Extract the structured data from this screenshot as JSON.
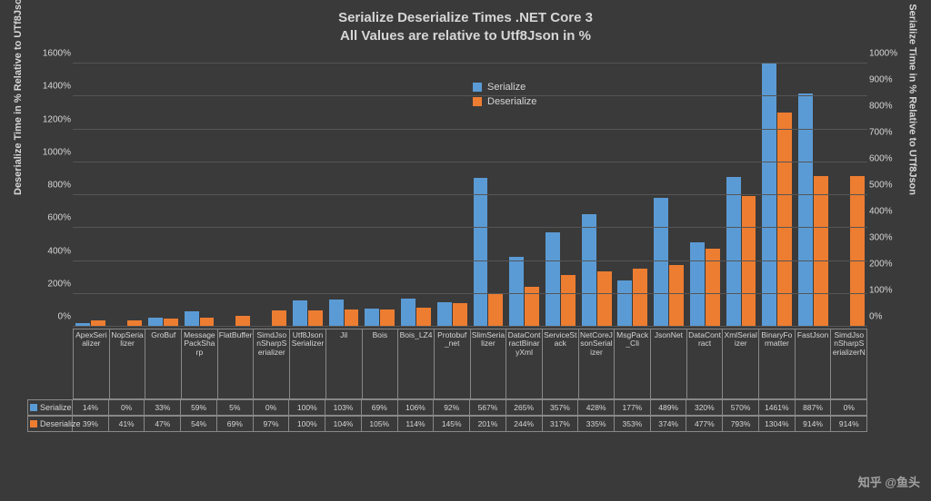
{
  "title": {
    "line1": "Serialize Deserialize Times .NET Core 3",
    "line2": "All Values are relative to Utf8Json in %",
    "fontsize": 15,
    "color": "#d6d6d6"
  },
  "watermark": "知乎 @鱼头",
  "background_color": "#3a3a3a",
  "grid_color": "#555555",
  "axis_text_color": "#d6d6d6",
  "legend": {
    "items": [
      {
        "label": "Serialize",
        "color": "#5b9bd5"
      },
      {
        "label": "Deserialize",
        "color": "#ed7d31"
      }
    ]
  },
  "y_left": {
    "label": "Deserialize Time in % Relative to UTf8Json",
    "min": 0,
    "max": 1600,
    "step": 200,
    "ticks": [
      "0%",
      "200%",
      "400%",
      "600%",
      "800%",
      "1000%",
      "1200%",
      "1400%",
      "1600%"
    ]
  },
  "y_right": {
    "label": "Serialize Time in % Relative to UTf8Json",
    "min": 0,
    "max": 1000,
    "step": 100,
    "ticks": [
      "0%",
      "100%",
      "200%",
      "300%",
      "400%",
      "500%",
      "600%",
      "700%",
      "800%",
      "900%",
      "1000%"
    ]
  },
  "series_colors": {
    "serialize": "#5b9bd5",
    "deserialize": "#ed7d31"
  },
  "categories": [
    "ApexSerializer",
    "NopSerializer",
    "GroBuf",
    "MessagePackSharp",
    "FlatBuffer",
    "SimdJsonSharpSerializer",
    "Utf8JsonSerializer",
    "Jil",
    "Bois",
    "Bois_LZ4",
    "Protobuf_net",
    "SlimSerializer",
    "DataContractBinaryXml",
    "ServiceStack",
    "NetCoreJsonSerializer",
    "MsgPack_Cli",
    "JsonNet",
    "DataContract",
    "XmlSerializer",
    "BinaryFormatter",
    "FastJson",
    "SimdJsonSharpSerializerN"
  ],
  "serialize_pct": [
    14,
    0,
    33,
    59,
    5,
    0,
    100,
    103,
    69,
    106,
    92,
    567,
    265,
    357,
    428,
    177,
    489,
    320,
    570,
    1461,
    887,
    0
  ],
  "deserialize_pct": [
    39,
    41,
    47,
    54,
    69,
    97,
    100,
    104,
    105,
    114,
    145,
    201,
    244,
    317,
    335,
    353,
    374,
    477,
    793,
    1304,
    914,
    914
  ],
  "table": {
    "rows": [
      {
        "label": "Serialize",
        "color": "#5b9bd5",
        "cells": [
          "14%",
          "0%",
          "33%",
          "59%",
          "5%",
          "0%",
          "100%",
          "103%",
          "69%",
          "106%",
          "92%",
          "567%",
          "265%",
          "357%",
          "428%",
          "177%",
          "489%",
          "320%",
          "570%",
          "1461%",
          "887%",
          "0%"
        ]
      },
      {
        "label": "Deserialize",
        "color": "#ed7d31",
        "cells": [
          "39%",
          "41%",
          "47%",
          "54%",
          "69%",
          "97%",
          "100%",
          "104%",
          "105%",
          "114%",
          "145%",
          "201%",
          "244%",
          "317%",
          "335%",
          "353%",
          "374%",
          "477%",
          "793%",
          "1304%",
          "914%",
          "914%"
        ]
      }
    ]
  }
}
